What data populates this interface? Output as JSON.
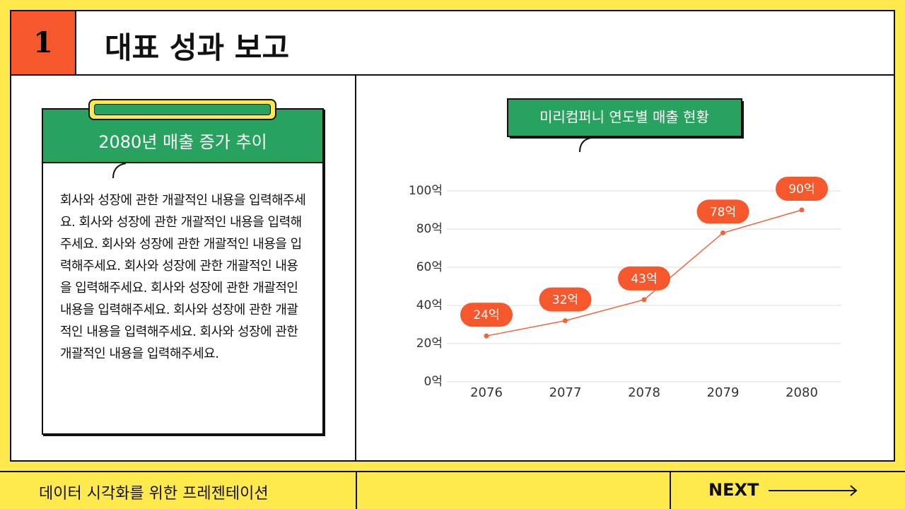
{
  "header": {
    "number": "1",
    "title": "대표 성과 보고"
  },
  "card": {
    "title": "2080년 매출 증가 추이",
    "body": "회사와 성장에 관한 개괄적인 내용을 입력해주세요. 회사와 성장에 관한 개괄적인 내용을 입력해주세요. 회사와 성장에 관한 개괄적인 내용을 입력해주세요. 회사와 성장에 관한 개괄적인 내용을 입력해주세요. 회사와 성장에 관한 개괄적인 내용을 입력해주세요. 회사와 성장에 관한 개괄적인 내용을 입력해주세요. 회사와 성장에 관한 개괄적인 내용을 입력해주세요."
  },
  "footer": {
    "text": "데이터 시각화를 위한 프레젠테이션",
    "next": "NEXT"
  },
  "chart_data": {
    "type": "line",
    "title": "미리컴퍼니 연도별 매출 현황",
    "categories": [
      "2076",
      "2077",
      "2078",
      "2079",
      "2080"
    ],
    "values": [
      24,
      32,
      43,
      78,
      90
    ],
    "value_labels": [
      "24억",
      "32억",
      "43억",
      "78억",
      "90억"
    ],
    "color": "#f0643a",
    "ylim": [
      0,
      100
    ],
    "yticks": [
      {
        "value": 0,
        "label": "0억"
      },
      {
        "value": 20,
        "label": "20억"
      },
      {
        "value": 40,
        "label": "40억"
      },
      {
        "value": 60,
        "label": "60억"
      },
      {
        "value": 80,
        "label": "80억"
      },
      {
        "value": 100,
        "label": "100억"
      }
    ],
    "grid": true
  }
}
